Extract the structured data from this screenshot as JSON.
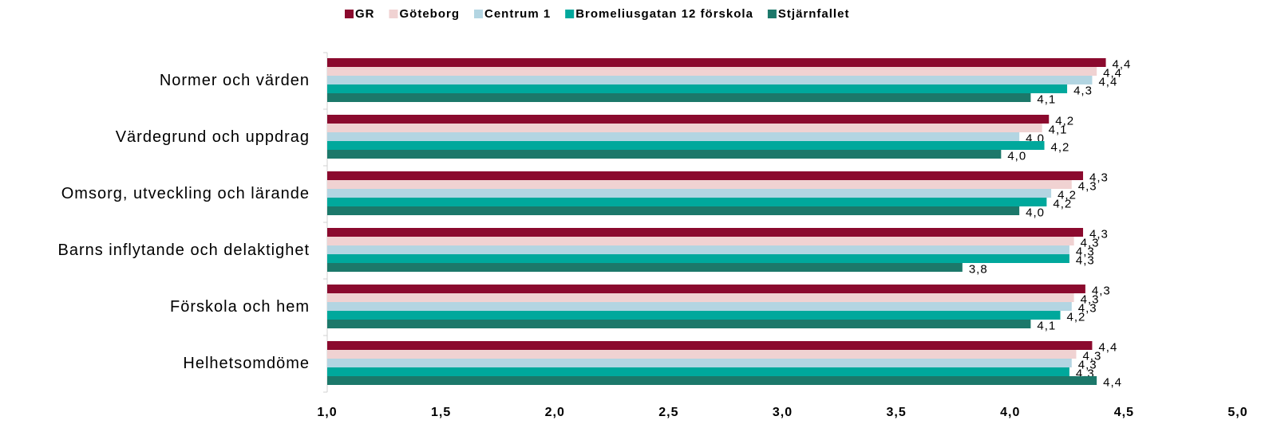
{
  "chart_data": {
    "type": "hbar",
    "categories": [
      "Normer och värden",
      "Värdegrund och uppdrag",
      "Omsorg, utveckling och lärande",
      "Barns inflytande och delaktighet",
      "Förskola och hem",
      "Helhetsomdöme"
    ],
    "series": [
      {
        "name": "GR",
        "color": "#8b0a2e",
        "values": [
          4.42,
          4.17,
          4.32,
          4.32,
          4.33,
          4.36
        ],
        "value_labels": [
          "4,4",
          "4,2",
          "4,3",
          "4,3",
          "4,3",
          "4,4"
        ]
      },
      {
        "name": "Göteborg",
        "color": "#f0d2d2",
        "values": [
          4.38,
          4.14,
          4.27,
          4.28,
          4.28,
          4.29
        ],
        "value_labels": [
          "4,4",
          "4,1",
          "4,3",
          "4,3",
          "4,3",
          "4,3"
        ]
      },
      {
        "name": "Centrum 1",
        "color": "#b3d5e2",
        "values": [
          4.36,
          4.04,
          4.18,
          4.26,
          4.27,
          4.27
        ],
        "value_labels": [
          "4,4",
          "4,0",
          "4,2",
          "4,3",
          "4,3",
          "4,3"
        ]
      },
      {
        "name": "Bromeliusgatan 12 förskola",
        "color": "#00a89c",
        "values": [
          4.25,
          4.15,
          4.16,
          4.26,
          4.22,
          4.26
        ],
        "value_labels": [
          "4,3",
          "4,2",
          "4,2",
          "4,3",
          "4,2",
          "4,3"
        ]
      },
      {
        "name": "Stjärnfallet",
        "color": "#1c786a",
        "values": [
          4.09,
          3.96,
          4.04,
          3.79,
          4.09,
          4.38
        ],
        "value_labels": [
          "4,1",
          "4,0",
          "4,0",
          "3,8",
          "4,1",
          "4,4"
        ]
      }
    ],
    "xlim": [
      1,
      5
    ],
    "xticks": [
      {
        "value": 1,
        "label": "1,0"
      },
      {
        "value": 1.5,
        "label": "1,5"
      },
      {
        "value": 2,
        "label": "2,0"
      },
      {
        "value": 2.5,
        "label": "2,5"
      },
      {
        "value": 3,
        "label": "3,0"
      },
      {
        "value": 3.5,
        "label": "3,5"
      },
      {
        "value": 4,
        "label": "4,0"
      },
      {
        "value": 4.5,
        "label": "4,5"
      },
      {
        "value": 5,
        "label": "5,0"
      }
    ],
    "legend": "top"
  }
}
